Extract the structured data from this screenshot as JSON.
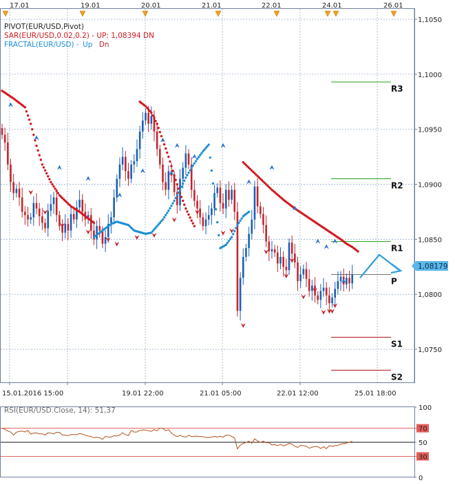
{
  "top_dates": [
    "17.01",
    "19.01",
    "20.01",
    "21.01",
    "22.01",
    "24.01",
    "26.01"
  ],
  "legend": {
    "pivot": "PIVOT(EUR/USD,Pivot)",
    "sar": "SAR(EUR/USD,0.02,0.2) -  UP: 1,08394  DN",
    "fractal_name": "FRACTAL(EUR/USD) - ",
    "fractal_up": "Up",
    "fractal_dn": "Dn"
  },
  "colors": {
    "background": "#ffffff",
    "grid": "#8aa6c8",
    "candle_up": "#1a5fb4",
    "candle_down": "#c0272d",
    "sar_down": "#d0191f",
    "sar_up": "#1f8fd6",
    "fractal_up": "#2a6fcf",
    "fractal_down": "#c0272d",
    "pivot_resist": "#1ea01e",
    "pivot_support": "#b0101a",
    "pivot_p": "#444444",
    "current_price_badge": "#5bb7ea",
    "forecast_arrow": "#2a9ee0",
    "rsi_line": "#b3501a",
    "rsi_band": "#d9342b"
  },
  "chart_data": [
    {
      "type": "candlestick",
      "title": "",
      "instrument": "EUR/USD",
      "ylim": [
        1.072,
        1.106
      ],
      "y_ticks": [
        "1,1050",
        "1,1000",
        "1,0950",
        "1,0900",
        "1,0850",
        "1,0800",
        "1,0750"
      ],
      "y_tick_values": [
        1.105,
        1.1,
        1.095,
        1.09,
        1.085,
        1.08,
        1.075
      ],
      "x_labels": [
        "15.01.2016 15:00",
        "19.01 22:00",
        "21.01 05:00",
        "22.01 12:00",
        "25.01 18:00"
      ],
      "last_price": "1,08179",
      "pivot_levels": [
        {
          "name": "R3",
          "value": 1.0993
        },
        {
          "name": "R2",
          "value": 1.0905
        },
        {
          "name": "R1",
          "value": 1.0848
        },
        {
          "name": "P",
          "value": 1.0818
        },
        {
          "name": "S1",
          "value": 1.0761
        },
        {
          "name": "S2",
          "value": 1.0731
        }
      ],
      "close_series": [
        1.0945,
        1.0938,
        1.0918,
        1.0902,
        1.0892,
        1.0896,
        1.0888,
        1.0875,
        1.0872,
        1.0868,
        1.087,
        1.0883,
        1.0878,
        1.0871,
        1.0865,
        1.086,
        1.0876,
        1.0882,
        1.0888,
        1.0872,
        1.0862,
        1.0856,
        1.0864,
        1.0858,
        1.0873,
        1.0868,
        1.0879,
        1.0886,
        1.0875,
        1.0868,
        1.0872,
        1.0858,
        1.085,
        1.0862,
        1.0858,
        1.0846,
        1.0852,
        1.0864,
        1.087,
        1.0888,
        1.0905,
        1.0918,
        1.0925,
        1.0912,
        1.0905,
        1.0918,
        1.0921,
        1.0932,
        1.0948,
        1.0958,
        1.0965,
        1.0955,
        1.0962,
        1.0948,
        1.0932,
        1.0918,
        1.0902,
        1.0895,
        1.0912,
        1.0908,
        1.0893,
        1.0881,
        1.0905,
        1.0915,
        1.0928,
        1.0918,
        1.0895,
        1.0885,
        1.0878,
        1.087,
        1.0862,
        1.0868,
        1.0872,
        1.0878,
        1.0892,
        1.0897,
        1.0883,
        1.0878,
        1.0895,
        1.0886,
        1.0895,
        1.0875,
        1.0785,
        1.0815,
        1.0834,
        1.0842,
        1.0855,
        1.0868,
        1.0898,
        1.088,
        1.0873,
        1.0863,
        1.0848,
        1.0839,
        1.0841,
        1.0838,
        1.0828,
        1.0834,
        1.0825,
        1.0822,
        1.0847,
        1.0837,
        1.0829,
        1.0812,
        1.0818,
        1.0823,
        1.0814,
        1.0803,
        1.0808,
        1.0799,
        1.0795,
        1.0803,
        1.0806,
        1.0799,
        1.0792,
        1.0797,
        1.0805,
        1.0812,
        1.0816,
        1.0809,
        1.0815,
        1.081,
        1.0818
      ],
      "sar_down": [
        [
          0.0,
          1.0985
        ],
        [
          4.0,
          1.0978
        ],
        [
          8.0,
          1.097
        ],
        [
          10.0,
          1.0955
        ],
        [
          12.0,
          1.0935
        ],
        [
          14.0,
          1.0918
        ],
        [
          17.0,
          1.0902
        ],
        [
          20.0,
          1.089
        ],
        [
          24.0,
          1.088
        ],
        [
          27.0,
          1.0875
        ],
        [
          30.0,
          1.0869
        ],
        [
          32.0,
          1.0865
        ],
        [
          48.0,
          1.0975
        ],
        [
          50.0,
          1.0971
        ],
        [
          52.0,
          1.0965
        ],
        [
          54.0,
          1.0955
        ],
        [
          56.0,
          1.094
        ],
        [
          58.0,
          1.0925
        ],
        [
          60.0,
          1.0908
        ],
        [
          62.0,
          1.0892
        ],
        [
          64.0,
          1.0878
        ],
        [
          66.0,
          1.0867
        ],
        [
          67.0,
          1.0862
        ],
        [
          84.0,
          1.092
        ],
        [
          86.0,
          1.0915
        ],
        [
          90.0,
          1.0905
        ],
        [
          94.0,
          1.0895
        ],
        [
          98.0,
          1.0886
        ],
        [
          102.0,
          1.0878
        ],
        [
          106.0,
          1.0871
        ],
        [
          110.0,
          1.0864
        ],
        [
          114.0,
          1.0857
        ],
        [
          118.0,
          1.085
        ],
        [
          120.0,
          1.0846
        ],
        [
          122.0,
          1.0843
        ],
        [
          124.0,
          1.0839
        ]
      ],
      "sar_up": [
        [
          -16.0,
          1.0845
        ],
        [
          -14.0,
          1.0855
        ],
        [
          -12.0,
          1.0866
        ],
        [
          -10.0,
          1.0877
        ],
        [
          -8.0,
          1.0888
        ],
        [
          -6.0,
          1.0895
        ],
        [
          32.0,
          1.0852
        ],
        [
          34.0,
          1.0856
        ],
        [
          36.0,
          1.086
        ],
        [
          38.0,
          1.0864
        ],
        [
          40.0,
          1.0866
        ],
        [
          44.0,
          1.0863
        ],
        [
          46.0,
          1.0858
        ],
        [
          50.0,
          1.0855
        ],
        [
          52.0,
          1.0856
        ],
        [
          54.0,
          1.0862
        ],
        [
          56.0,
          1.0868
        ],
        [
          58.0,
          1.0876
        ],
        [
          60.0,
          1.0885
        ],
        [
          62.0,
          1.0895
        ],
        [
          64.0,
          1.0906
        ],
        [
          66.0,
          1.0915
        ],
        [
          68.0,
          1.0923
        ],
        [
          70.0,
          1.093
        ],
        [
          72.0,
          1.0936
        ],
        [
          76.0,
          1.0842
        ],
        [
          78.0,
          1.0845
        ],
        [
          80.0,
          1.0852
        ],
        [
          82.0,
          1.0863
        ],
        [
          84.0,
          1.0871
        ],
        [
          86.0,
          1.0875
        ]
      ],
      "fractals_up": [
        [
          3.0,
          1.0972
        ],
        [
          12.0,
          1.0942
        ],
        [
          20.0,
          1.0915
        ],
        [
          30.0,
          1.0905
        ],
        [
          41.0,
          1.089
        ],
        [
          49.0,
          1.0912
        ],
        [
          56.0,
          1.094
        ],
        [
          59.0,
          1.091
        ],
        [
          61.0,
          1.0935
        ],
        [
          67.0,
          1.0925
        ],
        [
          77.0,
          1.0935
        ],
        [
          86.0,
          1.0902
        ],
        [
          94.0,
          1.0915
        ],
        [
          102.0,
          1.0878
        ],
        [
          110.0,
          1.0848
        ],
        [
          113.0,
          1.0843
        ],
        [
          116.0,
          1.0848
        ],
        [
          119.0,
          1.0812
        ]
      ],
      "fractals_down": [
        [
          10.0,
          1.0893
        ],
        [
          15.0,
          1.0875
        ],
        [
          21.0,
          1.0863
        ],
        [
          30.0,
          1.0857
        ],
        [
          37.0,
          1.085
        ],
        [
          40.0,
          1.0846
        ],
        [
          47.0,
          1.0852
        ],
        [
          53.0,
          1.0854
        ],
        [
          60.0,
          1.0868
        ],
        [
          68.0,
          1.0875
        ],
        [
          77.0,
          1.0856
        ],
        [
          80.0,
          1.0858
        ],
        [
          84.0,
          1.0772
        ],
        [
          92.0,
          1.0839
        ],
        [
          99.0,
          1.0817
        ],
        [
          101.0,
          1.0831
        ],
        [
          105.0,
          1.0798
        ],
        [
          109.0,
          1.0804
        ],
        [
          112.0,
          1.0784
        ],
        [
          114.0,
          1.0785
        ],
        [
          115.0,
          1.0785
        ],
        [
          116.0,
          1.079
        ]
      ],
      "forecast": "up then down from pivot P area"
    },
    {
      "type": "line",
      "title": "RSI(EUR/USD.Close, 14): 51,37",
      "ylim": [
        0,
        100
      ],
      "y_ticks": [
        "100",
        "70",
        "50",
        "30",
        "0"
      ],
      "levels": [
        70,
        50,
        30
      ],
      "values": [
        70.0,
        68.5,
        66.0,
        64.5,
        60.2,
        64.4,
        65.4,
        65.9,
        64.7,
        66.8,
        61.5,
        63.2,
        63.2,
        62.1,
        62.0,
        60.4,
        63.6,
        63.0,
        62.0,
        64.2,
        64.1,
        60.3,
        60.0,
        59.5,
        61.0,
        61.1,
        60.9,
        62.4,
        61.7,
        60.0,
        58.8,
        58.2,
        56.5,
        57.3,
        56.6,
        54.1,
        58.4,
        57.5,
        57.5,
        59.3,
        58.9,
        60.3,
        63.6,
        60.8,
        59.5,
        66.9,
        64.5,
        64.7,
        67.0,
        67.6,
        67.4,
        66.4,
        65.7,
        68.0,
        66.5,
        70.2,
        69.8,
        66.5,
        68.0,
        63.1,
        60.3,
        58.0,
        60.0,
        58.0,
        57.4,
        60.0,
        58.1,
        58.7,
        58.5,
        58.2,
        57.9,
        56.9,
        56.9,
        57.3,
        58.6,
        57.4,
        58.5,
        57.3,
        60.0,
        60.1,
        58.4,
        56.0,
        40.7,
        45.9,
        48.3,
        49.7,
        51.5,
        48.7,
        54.8,
        52.0,
        49.8,
        51.6,
        49.3,
        49.5,
        46.3,
        46.7,
        45.2,
        47.0,
        44.9,
        46.2,
        48.5,
        47.3,
        44.4,
        42.6,
        45.5,
        45.2,
        44.4,
        41.6,
        43.0,
        44.0,
        43.8,
        41.2,
        43.7,
        41.1,
        45.2,
        44.2,
        45.2,
        45.7,
        47.4,
        48.1,
        48.8,
        50.2,
        51.4
      ]
    }
  ],
  "rsi_tick_values": [
    100,
    70,
    50,
    30,
    0
  ]
}
